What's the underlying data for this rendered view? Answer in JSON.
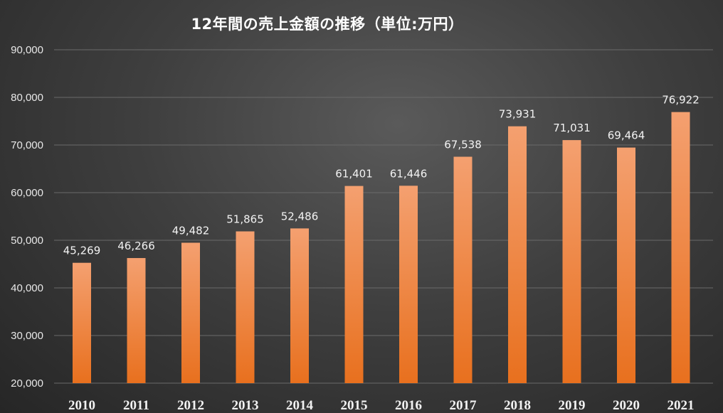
{
  "chart_data": {
    "type": "bar",
    "title": "12年間の売上金額の推移（単位:万円）",
    "categories": [
      "2010",
      "2011",
      "2012",
      "2013",
      "2014",
      "2015",
      "2016",
      "2017",
      "2018",
      "2019",
      "2020",
      "2021"
    ],
    "values": [
      45269,
      46266,
      49482,
      51865,
      52486,
      61401,
      61446,
      67538,
      73931,
      71031,
      69464,
      76922
    ],
    "data_labels": [
      "45,269",
      "46,266",
      "49,482",
      "51,865",
      "52,486",
      "61,401",
      "61,446",
      "67,538",
      "73,931",
      "71,031",
      "69,464",
      "76,922"
    ],
    "y_ticks": [
      20000,
      30000,
      40000,
      50000,
      60000,
      70000,
      80000,
      90000
    ],
    "y_tick_labels": [
      "20,000",
      "30,000",
      "40,000",
      "50,000",
      "60,000",
      "70,000",
      "80,000",
      "90,000"
    ],
    "ylim": [
      20000,
      90000
    ],
    "grid": true,
    "legend": "none",
    "colors": {
      "bar_top": "#f4a070",
      "bar_bottom": "#e8701e",
      "grid": "#6a6a6a",
      "background": "#3f3f3f"
    }
  }
}
